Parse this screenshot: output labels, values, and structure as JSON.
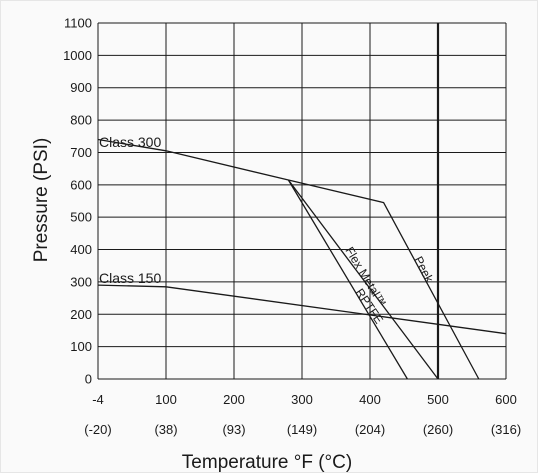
{
  "chart_data": {
    "type": "line",
    "xlabel": "Temperature °F (°C)",
    "ylabel": "Pressure (PSI)",
    "xlim": [
      -4,
      600
    ],
    "ylim": [
      0,
      1100
    ],
    "grid": true,
    "x_ticks": [
      {
        "value": -4,
        "label": "-4",
        "celsius": "(-20)"
      },
      {
        "value": 100,
        "label": "100",
        "celsius": "(38)"
      },
      {
        "value": 200,
        "label": "200",
        "celsius": "(93)"
      },
      {
        "value": 300,
        "label": "300",
        "celsius": "(149)"
      },
      {
        "value": 400,
        "label": "400",
        "celsius": "(204)"
      },
      {
        "value": 500,
        "label": "500",
        "celsius": "(260)"
      },
      {
        "value": 600,
        "label": "600",
        "celsius": "(316)"
      }
    ],
    "y_ticks": [
      0,
      100,
      200,
      300,
      400,
      500,
      600,
      700,
      800,
      900,
      1000,
      1100
    ],
    "emphasized_x_gridline": 500,
    "series": [
      {
        "name": "Class 300",
        "points": [
          [
            -4,
            740
          ],
          [
            100,
            705
          ],
          [
            280,
            615
          ]
        ]
      },
      {
        "name": "Class 150",
        "points": [
          [
            -4,
            290
          ],
          [
            100,
            285
          ],
          [
            600,
            140
          ]
        ]
      },
      {
        "name": "Peek",
        "points": [
          [
            280,
            615
          ],
          [
            420,
            545
          ],
          [
            560,
            0
          ]
        ]
      },
      {
        "name": "Flex Metal™",
        "points": [
          [
            280,
            615
          ],
          [
            500,
            0
          ]
        ]
      },
      {
        "name": "RPTFE",
        "points": [
          [
            280,
            615
          ],
          [
            455,
            0
          ]
        ]
      }
    ]
  }
}
